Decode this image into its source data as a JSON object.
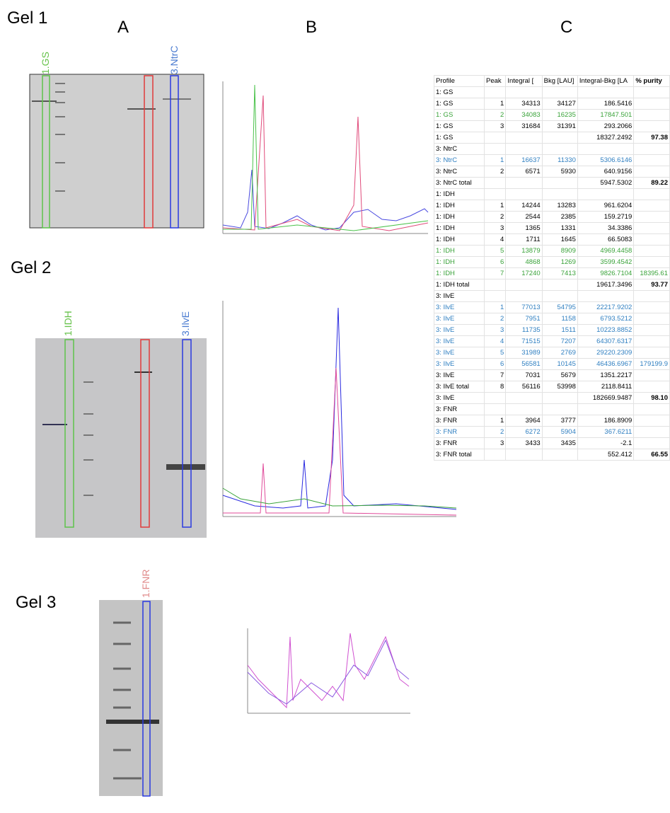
{
  "figure": {
    "gel_labels": [
      "Gel 1",
      "Gel 2",
      "Gel 3"
    ],
    "panel_labels": [
      "A",
      "B",
      "C"
    ],
    "lane_labels": [
      {
        "text": "1.GS",
        "color": "#66c24a"
      },
      {
        "text": "3.NtrC",
        "color": "#4a7bd0"
      },
      {
        "text": "1.IDH",
        "color": "#66c24a"
      },
      {
        "text": "3.IlvE",
        "color": "#4a7bd0"
      },
      {
        "text": "1.FNR",
        "color": "#e08a8a"
      }
    ]
  },
  "table": {
    "header": [
      "Profile",
      "Peak",
      "Integral [",
      "Bkg [LAU]",
      "Integral-Bkg [LA",
      "% purity"
    ],
    "rows": [
      {
        "cells": [
          "1: GS",
          null,
          null,
          null,
          null,
          null
        ]
      },
      {
        "cells": [
          "1: GS",
          "1",
          "34313",
          "34127",
          "186.5416",
          null
        ]
      },
      {
        "cells": [
          "1: GS",
          "2",
          "34083",
          "16235",
          "17847.501",
          null
        ],
        "color": "#3aa33a"
      },
      {
        "cells": [
          "1: GS",
          "3",
          "31684",
          "31391",
          "293.2066",
          null
        ]
      },
      {
        "cells": [
          "1: GS",
          null,
          null,
          null,
          "18327.2492",
          "97.38"
        ]
      },
      {
        "cells": [
          "3: NtrC",
          null,
          null,
          null,
          null,
          null
        ]
      },
      {
        "cells": [
          "3: NtrC",
          "1",
          "16637",
          "11330",
          "5306.6146",
          null
        ],
        "color": "#2f7fc1"
      },
      {
        "cells": [
          "3: NtrC",
          "2",
          "6571",
          "5930",
          "640.9156",
          null
        ]
      },
      {
        "cells": [
          "3: NtrC total",
          null,
          null,
          null,
          "5947.5302",
          "89.22"
        ]
      },
      {
        "cells": [
          "1: IDH",
          null,
          null,
          null,
          null,
          null
        ]
      },
      {
        "cells": [
          "1: IDH",
          "1",
          "14244",
          "13283",
          "961.6204",
          null
        ]
      },
      {
        "cells": [
          "1: IDH",
          "2",
          "2544",
          "2385",
          "159.2719",
          null
        ]
      },
      {
        "cells": [
          "1: IDH",
          "3",
          "1365",
          "1331",
          "34.3386",
          null
        ]
      },
      {
        "cells": [
          "1: IDH",
          "4",
          "1711",
          "1645",
          "66.5083",
          null
        ]
      },
      {
        "cells": [
          "1: IDH",
          "5",
          "13879",
          "8909",
          "4969.4458",
          null
        ],
        "color": "#3aa33a"
      },
      {
        "cells": [
          "1: IDH",
          "6",
          "4868",
          "1269",
          "3599.4542",
          null
        ],
        "color": "#3aa33a"
      },
      {
        "cells": [
          "1: IDH",
          "7",
          "17240",
          "7413",
          "9826.7104",
          "18395.61"
        ],
        "color": "#3aa33a"
      },
      {
        "cells": [
          "1: IDH total",
          null,
          null,
          null,
          "19617.3496",
          "93.77"
        ]
      },
      {
        "cells": [
          "3: IlvE",
          null,
          null,
          null,
          null,
          null
        ]
      },
      {
        "cells": [
          "3: IlvE",
          "1",
          "77013",
          "54795",
          "22217.9202",
          null
        ],
        "color": "#2f7fc1"
      },
      {
        "cells": [
          "3: IlvE",
          "2",
          "7951",
          "1158",
          "6793.5212",
          null
        ],
        "color": "#2f7fc1"
      },
      {
        "cells": [
          "3: IlvE",
          "3",
          "11735",
          "1511",
          "10223.8852",
          null
        ],
        "color": "#2f7fc1"
      },
      {
        "cells": [
          "3: IlvE",
          "4",
          "71515",
          "7207",
          "64307.6317",
          null
        ],
        "color": "#2f7fc1"
      },
      {
        "cells": [
          "3: IlvE",
          "5",
          "31989",
          "2769",
          "29220.2309",
          null
        ],
        "color": "#2f7fc1"
      },
      {
        "cells": [
          "3: IlvE",
          "6",
          "56581",
          "10145",
          "46436.6967",
          "179199.9"
        ],
        "color": "#2f7fc1"
      },
      {
        "cells": [
          "3: IlvE",
          "7",
          "7031",
          "5679",
          "1351.2217",
          null
        ]
      },
      {
        "cells": [
          "3: IlvE total",
          "8",
          "56116",
          "53998",
          "2118.8411",
          null
        ]
      },
      {
        "cells": [
          "3: IlvE",
          null,
          null,
          null,
          "182669.9487",
          "98.10"
        ]
      },
      {
        "cells": [
          "3: FNR",
          null,
          null,
          null,
          null,
          null
        ]
      },
      {
        "cells": [
          "3: FNR",
          "1",
          "3964",
          "3777",
          "186.8909",
          null
        ]
      },
      {
        "cells": [
          "3: FNR",
          "2",
          "6272",
          "5904",
          "367.6211",
          null
        ],
        "color": "#2f7fc1"
      },
      {
        "cells": [
          "3: FNR",
          "3",
          "3433",
          "3435",
          "-2.1",
          null
        ]
      },
      {
        "cells": [
          "3: FNR total",
          null,
          null,
          null,
          "552.412",
          "66.55"
        ]
      }
    ]
  }
}
